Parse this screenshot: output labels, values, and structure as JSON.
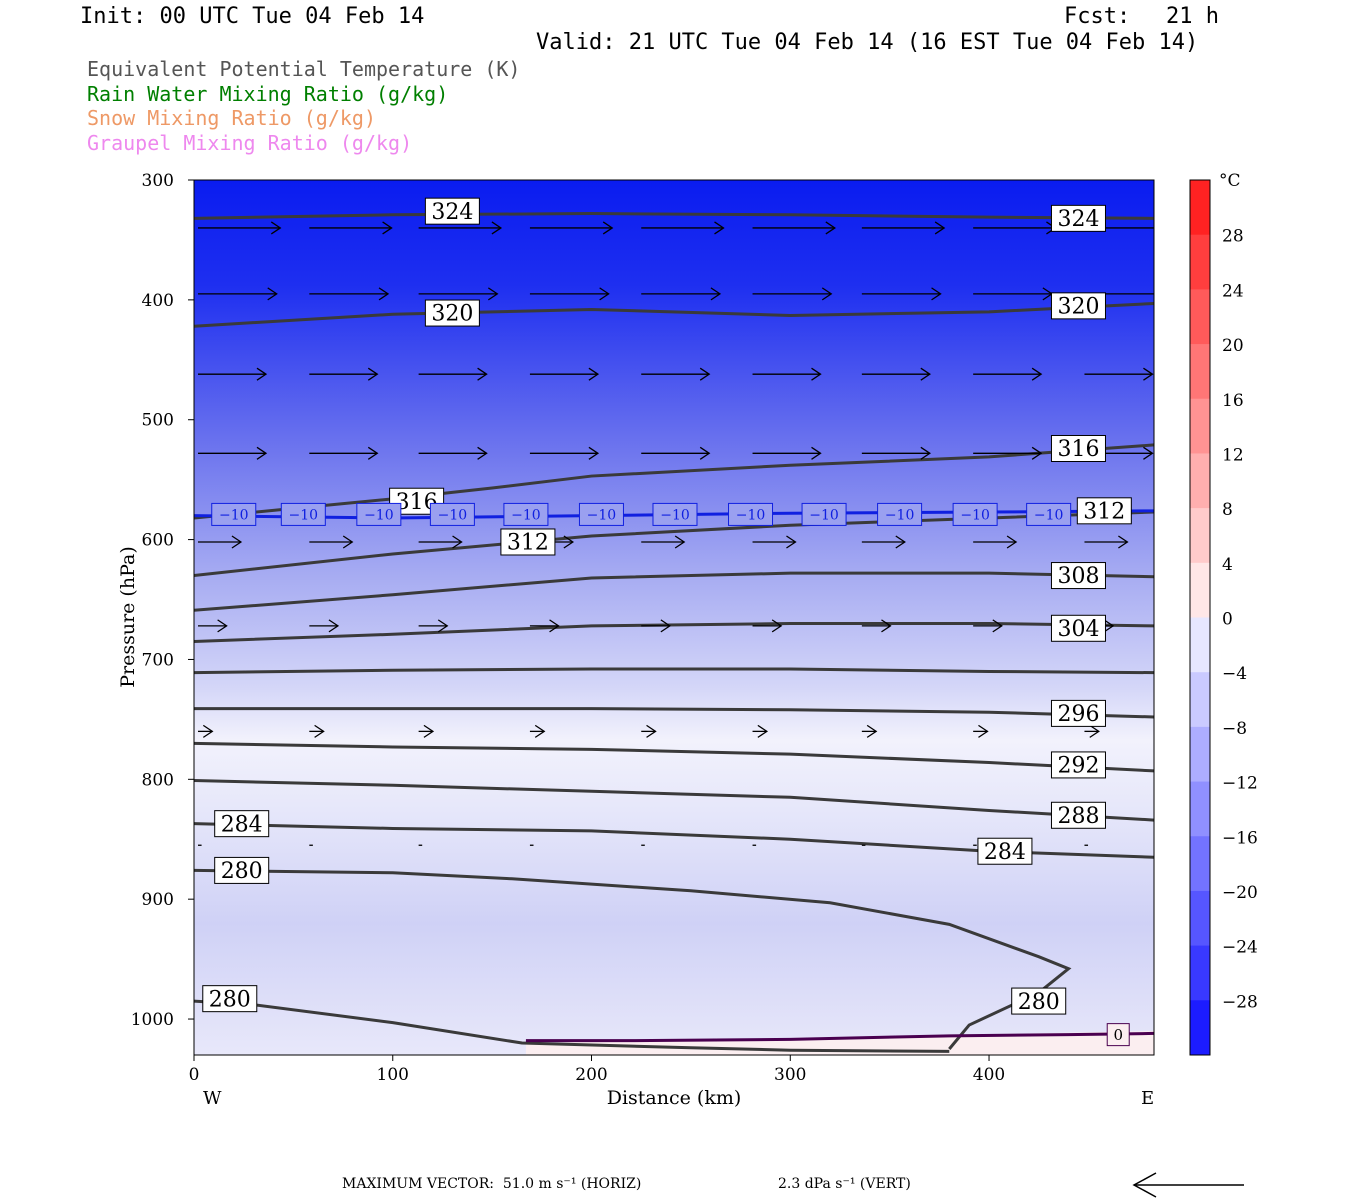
{
  "header": {
    "init": "Init: 00 UTC Tue 04 Feb 14",
    "fcst_label": "Fcst:",
    "fcst_value": "21 h",
    "valid": "Valid: 21 UTC Tue 04 Feb 14 (16 EST Tue 04 Feb 14)"
  },
  "legend": {
    "items": [
      {
        "text": "Equivalent Potential Temperature (K)",
        "color": "#555555"
      },
      {
        "text": "Rain Water Mixing Ratio (g/kg)",
        "color": "#007f00"
      },
      {
        "text": "Snow Mixing Ratio (g/kg)",
        "color": "#ee9966"
      },
      {
        "text": "Graupel Mixing Ratio (g/kg)",
        "color": "#ee88ee"
      }
    ]
  },
  "chart_data": {
    "type": "cross-section",
    "xlabel": "Distance (km)",
    "ylabel": "Pressure (hPa)",
    "x_ticks": [
      0,
      100,
      200,
      300,
      400
    ],
    "y_ticks": [
      300,
      400,
      500,
      600,
      700,
      800,
      900,
      1000
    ],
    "xlim": [
      0,
      483
    ],
    "ylim": [
      300,
      1030
    ],
    "y_reversed": true,
    "west_label": "W",
    "east_label": "E",
    "fill": {
      "variable": "temperature",
      "unit": "°C",
      "colorbar_labels": [
        "28",
        "24",
        "20",
        "16",
        "12",
        "8",
        "4",
        "0",
        "−4",
        "−8",
        "−12",
        "−16",
        "−20",
        "−24",
        "−28"
      ],
      "colorbar_range": [
        -32,
        32
      ],
      "colorbar_step": 4
    },
    "theta_e_contours": [
      {
        "value": 324,
        "points": [
          [
            0,
            332
          ],
          [
            100,
            329
          ],
          [
            200,
            328
          ],
          [
            300,
            329
          ],
          [
            400,
            331
          ],
          [
            483,
            332
          ]
        ],
        "labels": [
          {
            "text": "324",
            "at": [
              130,
              326
            ]
          },
          {
            "text": "324",
            "at": [
              445,
              332
            ]
          }
        ]
      },
      {
        "value": 320,
        "points": [
          [
            0,
            422
          ],
          [
            100,
            412
          ],
          [
            200,
            408
          ],
          [
            300,
            413
          ],
          [
            400,
            410
          ],
          [
            483,
            403
          ]
        ],
        "labels": [
          {
            "text": "320",
            "at": [
              130,
              411
            ]
          },
          {
            "text": "320",
            "at": [
              445,
              405
            ]
          }
        ]
      },
      {
        "value": 316,
        "points": [
          [
            0,
            582
          ],
          [
            100,
            566
          ],
          [
            150,
            557
          ],
          [
            200,
            547
          ],
          [
            300,
            538
          ],
          [
            400,
            531
          ],
          [
            483,
            521
          ]
        ],
        "labels": [
          {
            "text": "316",
            "at": [
              112,
              568
            ]
          },
          {
            "text": "316",
            "at": [
              445,
              524
            ]
          }
        ]
      },
      {
        "value": 312,
        "points": [
          [
            0,
            630
          ],
          [
            100,
            612
          ],
          [
            200,
            597
          ],
          [
            300,
            588
          ],
          [
            400,
            582
          ],
          [
            483,
            577
          ]
        ],
        "labels": [
          {
            "text": "312",
            "at": [
              168,
              602
            ]
          },
          {
            "text": "312",
            "at": [
              458,
              576
            ]
          }
        ]
      },
      {
        "value": 308,
        "points": [
          [
            0,
            659
          ],
          [
            100,
            646
          ],
          [
            200,
            632
          ],
          [
            300,
            628
          ],
          [
            400,
            628
          ],
          [
            483,
            631
          ]
        ],
        "labels": [
          {
            "text": "308",
            "at": [
              445,
              630
            ]
          }
        ]
      },
      {
        "value": 304,
        "points": [
          [
            0,
            685
          ],
          [
            100,
            679
          ],
          [
            200,
            672
          ],
          [
            300,
            670
          ],
          [
            400,
            670
          ],
          [
            483,
            672
          ]
        ],
        "labels": [
          {
            "text": "304",
            "at": [
              445,
              674
            ]
          }
        ]
      },
      {
        "value": 300,
        "points": [
          [
            0,
            711
          ],
          [
            100,
            709
          ],
          [
            200,
            708
          ],
          [
            300,
            708
          ],
          [
            400,
            710
          ],
          [
            483,
            711
          ]
        ],
        "labels": []
      },
      {
        "value": 296,
        "points": [
          [
            0,
            741
          ],
          [
            100,
            741
          ],
          [
            200,
            741
          ],
          [
            300,
            742
          ],
          [
            400,
            744
          ],
          [
            483,
            748
          ]
        ],
        "labels": [
          {
            "text": "296",
            "at": [
              445,
              745
            ]
          }
        ]
      },
      {
        "value": 292,
        "points": [
          [
            0,
            770
          ],
          [
            100,
            773
          ],
          [
            200,
            775
          ],
          [
            300,
            779
          ],
          [
            400,
            786
          ],
          [
            483,
            793
          ]
        ],
        "labels": [
          {
            "text": "292",
            "at": [
              445,
              788
            ]
          }
        ]
      },
      {
        "value": 288,
        "points": [
          [
            0,
            801
          ],
          [
            100,
            805
          ],
          [
            200,
            810
          ],
          [
            300,
            815
          ],
          [
            400,
            826
          ],
          [
            483,
            834
          ]
        ],
        "labels": [
          {
            "text": "288",
            "at": [
              445,
              830
            ]
          }
        ]
      },
      {
        "value": 284,
        "points": [
          [
            0,
            837
          ],
          [
            100,
            841
          ],
          [
            200,
            843
          ],
          [
            300,
            850
          ],
          [
            400,
            860
          ],
          [
            483,
            865
          ]
        ],
        "labels": [
          {
            "text": "284",
            "at": [
              24,
              837
            ]
          },
          {
            "text": "284",
            "at": [
              408,
              860
            ]
          }
        ]
      },
      {
        "value": 280,
        "points": [
          [
            0,
            876
          ],
          [
            100,
            878
          ],
          [
            160,
            883
          ],
          [
            250,
            893
          ],
          [
            320,
            903
          ],
          [
            380,
            921
          ],
          [
            425,
            948
          ],
          [
            440,
            958
          ],
          [
            425,
            978
          ],
          [
            390,
            1005
          ],
          [
            380,
            1025
          ]
        ],
        "labels": [
          {
            "text": "280",
            "at": [
              24,
              876
            ]
          },
          {
            "text": "280",
            "at": [
              425,
              985
            ]
          }
        ]
      },
      {
        "value": 280,
        "points": [
          [
            0,
            985
          ],
          [
            30,
            988
          ],
          [
            100,
            1003
          ],
          [
            165,
            1020
          ],
          [
            250,
            1024
          ],
          [
            300,
            1026
          ],
          [
            380,
            1027
          ]
        ],
        "labels": [
          {
            "text": "280",
            "at": [
              18,
              983
            ]
          }
        ]
      }
    ],
    "isotherm_minus10": {
      "value": -10,
      "label": "−10",
      "points": [
        [
          0,
          580
        ],
        [
          100,
          582
        ],
        [
          200,
          580
        ],
        [
          300,
          578
        ],
        [
          400,
          577
        ],
        [
          483,
          576
        ]
      ],
      "label_x": [
        20,
        55,
        93,
        130,
        167,
        205,
        242,
        280,
        317,
        355,
        393,
        430
      ]
    },
    "isotherm_zero": {
      "value": 0,
      "label": "0",
      "points": [
        [
          167,
          1018
        ],
        [
          220,
          1018
        ],
        [
          300,
          1017
        ],
        [
          380,
          1014
        ],
        [
          440,
          1013
        ],
        [
          483,
          1012
        ]
      ],
      "label_at": [
        465,
        1013
      ]
    },
    "wind_vectors": {
      "columns": [
        0,
        56,
        111,
        167,
        223,
        279,
        334,
        390,
        446
      ],
      "levels": [
        {
          "p": 340,
          "len": 46
        },
        {
          "p": 395,
          "len": 44
        },
        {
          "p": 462,
          "len": 38
        },
        {
          "p": 528,
          "len": 38
        },
        {
          "p": 602,
          "len": 24
        },
        {
          "p": 672,
          "len": 16
        },
        {
          "p": 760,
          "len": 8
        },
        {
          "p": 855,
          "len": 2
        }
      ]
    },
    "max_vector": {
      "prefix": "MAXIMUM VECTOR:",
      "horiz": "51.0 m s⁻¹ (HORIZ)",
      "vert": "2.3 dPa s⁻¹ (VERT)"
    }
  }
}
